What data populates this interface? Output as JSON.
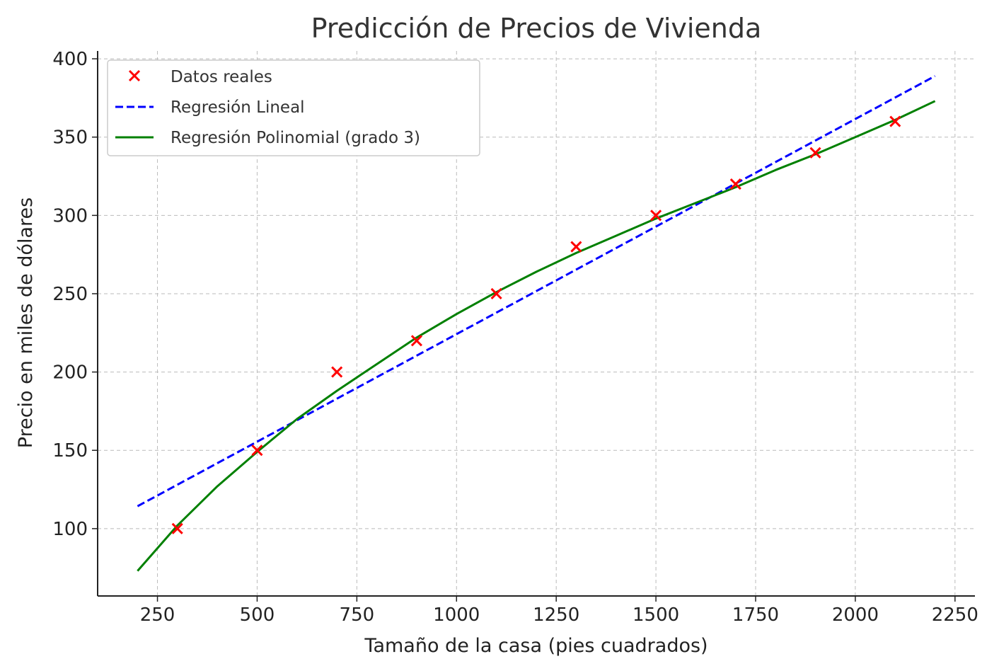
{
  "chart_data": {
    "type": "line",
    "title": "Predicción de Precios de Vivienda",
    "xlabel": "Tamaño de la casa (pies cuadrados)",
    "ylabel": "Precio en miles de dólares",
    "xlim": [
      100,
      2300
    ],
    "ylim": [
      57,
      405
    ],
    "xticks": [
      250,
      500,
      750,
      1000,
      1250,
      1500,
      1750,
      2000,
      2250
    ],
    "yticks": [
      100,
      150,
      200,
      250,
      300,
      350,
      400
    ],
    "grid": true,
    "legend_position": "top-left",
    "series": [
      {
        "name": "Datos reales",
        "kind": "scatter",
        "marker": "x",
        "color": "#ff0000",
        "x": [
          300,
          500,
          700,
          900,
          1100,
          1300,
          1500,
          1700,
          1900,
          2100
        ],
        "y": [
          100,
          150,
          200,
          220,
          250,
          280,
          300,
          320,
          340,
          360
        ]
      },
      {
        "name": "Regresión Lineal",
        "kind": "line",
        "style": "dashed",
        "color": "#0000ff",
        "x": [
          200,
          2200
        ],
        "y": [
          114.3,
          389.0
        ]
      },
      {
        "name": "Regresión Polinomial (grado 3)",
        "kind": "line",
        "style": "solid",
        "color": "#008000",
        "x": [
          200,
          300,
          400,
          500,
          600,
          700,
          800,
          900,
          1000,
          1100,
          1200,
          1300,
          1400,
          1500,
          1600,
          1700,
          1800,
          1900,
          2000,
          2100,
          2200
        ],
        "y": [
          73,
          102,
          127,
          149,
          170,
          188,
          205,
          222,
          237,
          251,
          264,
          276,
          287,
          298,
          308,
          318,
          329,
          339,
          350,
          361,
          373
        ]
      }
    ]
  }
}
